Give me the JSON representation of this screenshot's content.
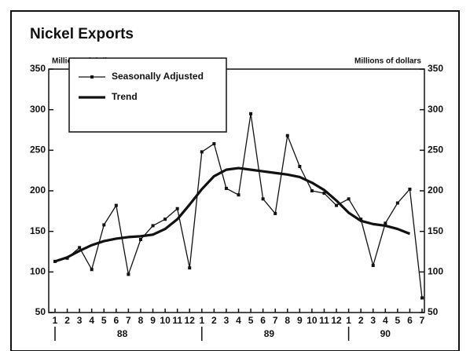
{
  "chart_data": {
    "type": "line",
    "title": "Nickel Exports",
    "y_label": "Millions of dollars",
    "y2_label": "Millions of dollars",
    "categories": [
      "1",
      "2",
      "3",
      "4",
      "5",
      "6",
      "7",
      "8",
      "9",
      "10",
      "11",
      "12",
      "1",
      "2",
      "3",
      "4",
      "5",
      "6",
      "7",
      "8",
      "9",
      "10",
      "11",
      "12",
      "1",
      "2",
      "3",
      "4",
      "5",
      "6",
      "7"
    ],
    "year_groups": [
      {
        "label": "88",
        "months": 12
      },
      {
        "label": "89",
        "months": 12
      },
      {
        "label": "90",
        "months": 7
      }
    ],
    "series": [
      {
        "name": "Seasonally Adjusted",
        "color": "#111",
        "markers": true,
        "values": [
          113,
          117,
          130,
          103,
          158,
          182,
          97,
          140,
          157,
          165,
          178,
          105,
          248,
          258,
          203,
          195,
          295,
          190,
          172,
          268,
          230,
          200,
          197,
          182,
          190,
          165,
          108,
          160,
          185,
          202,
          68
        ]
      },
      {
        "name": "Trend",
        "color": "#111",
        "markers": false,
        "values": [
          113,
          118,
          126,
          133,
          138,
          141,
          143,
          144,
          146,
          153,
          165,
          183,
          202,
          218,
          226,
          228,
          226,
          224,
          222,
          220,
          217,
          210,
          201,
          188,
          173,
          163,
          159,
          157,
          153,
          147,
          null
        ]
      }
    ],
    "ylim": [
      50,
      350
    ],
    "yticks": [
      50,
      100,
      150,
      200,
      250,
      300,
      350
    ],
    "y2lim": [
      50,
      350
    ],
    "y2ticks": [
      50,
      100,
      150,
      200,
      250,
      300,
      350
    ],
    "legend": "upper left"
  }
}
